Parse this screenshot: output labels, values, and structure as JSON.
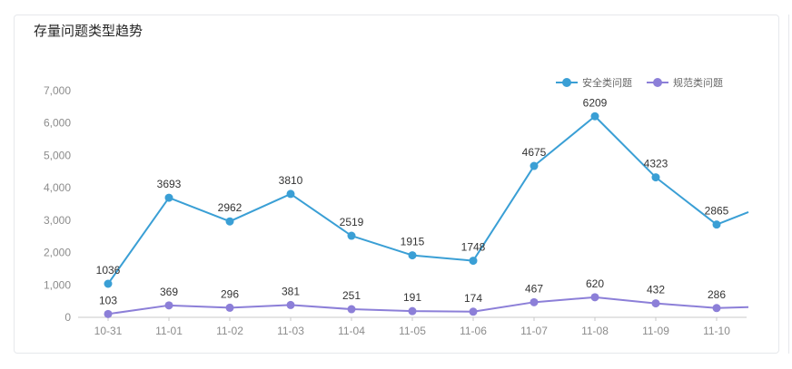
{
  "card": {
    "title": "存量问题类型趋势"
  },
  "chart_data": {
    "type": "line",
    "title": "存量问题类型趋势",
    "categories": [
      "10-31",
      "11-01",
      "11-02",
      "11-03",
      "11-04",
      "11-05",
      "11-06",
      "11-07",
      "11-08",
      "11-09",
      "11-10"
    ],
    "series": [
      {
        "name": "安全类问题",
        "color": "#3a9fd5",
        "values": [
          1036,
          3693,
          2962,
          3810,
          2519,
          1915,
          1748,
          4675,
          6209,
          4323,
          2865
        ],
        "continues_to": 3600
      },
      {
        "name": "规范类问题",
        "color": "#8c7fd8",
        "values": [
          103,
          369,
          296,
          381,
          251,
          191,
          174,
          467,
          620,
          432,
          286
        ],
        "continues_to": 340
      }
    ],
    "y_ticks": [
      "0",
      "1,000",
      "2,000",
      "3,000",
      "4,000",
      "5,000",
      "6,000",
      "7,000"
    ],
    "ylim": [
      0,
      7000
    ],
    "grid": false,
    "legend_position": "top-right",
    "data_labels": true
  }
}
